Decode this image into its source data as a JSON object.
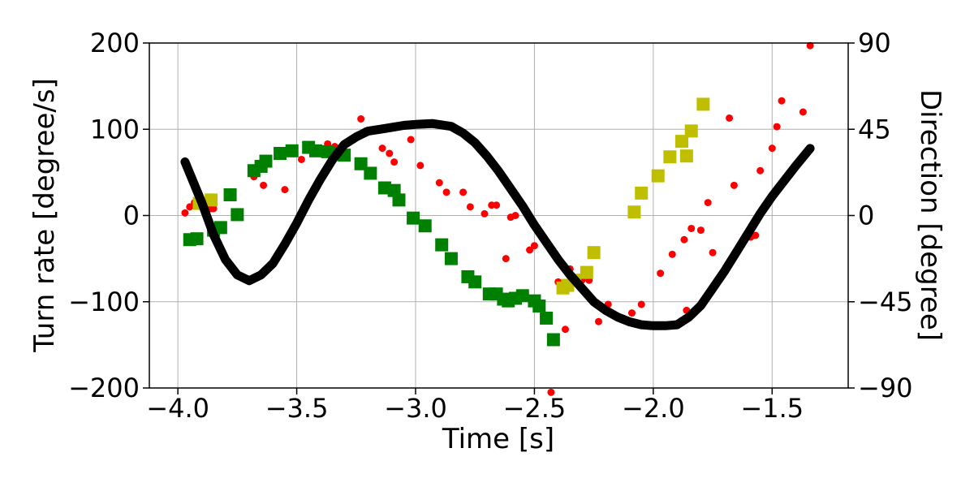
{
  "chart_data": {
    "type": "scatter",
    "title": "",
    "xlabel": "Time [s]",
    "ylabel": "Turn rate [degree/s]",
    "y2label": "Direction [degree]",
    "xlim": [
      -4.12,
      -1.18
    ],
    "ylim": [
      -200,
      200
    ],
    "y2lim": [
      -90,
      90
    ],
    "x_ticks": [
      -4.0,
      -3.5,
      -3.0,
      -2.5,
      -2.0,
      -1.5
    ],
    "x_tick_labels": [
      "−4.0",
      "−3.5",
      "−3.0",
      "−2.5",
      "−2.0",
      "−1.5"
    ],
    "y_ticks": [
      -200,
      -100,
      0,
      100,
      200
    ],
    "y_tick_labels": [
      "−200",
      "−100",
      "0",
      "100",
      "200"
    ],
    "y2_ticks": [
      -90,
      -45,
      0,
      45,
      90
    ],
    "y2_tick_labels": [
      "−90",
      "−45",
      "0",
      "45",
      "90"
    ],
    "grid": true,
    "series": [
      {
        "axis": "left",
        "marker": "circle",
        "color": "#ff0000",
        "points": [
          [
            -3.97,
            3
          ],
          [
            -3.95,
            10
          ],
          [
            -3.93,
            15
          ],
          [
            -3.9,
            12
          ],
          [
            -3.87,
            8
          ],
          [
            -3.86,
            8
          ],
          [
            -3.85,
            8
          ],
          [
            -3.68,
            45
          ],
          [
            -3.64,
            35
          ],
          [
            -3.55,
            30
          ],
          [
            -3.48,
            65
          ],
          [
            -3.42,
            75
          ],
          [
            -3.4,
            73
          ],
          [
            -3.37,
            83
          ],
          [
            -3.34,
            80
          ],
          [
            -3.32,
            78
          ],
          [
            -3.26,
            88
          ],
          [
            -3.23,
            112
          ],
          [
            -3.21,
            98
          ],
          [
            -3.14,
            78
          ],
          [
            -3.11,
            72
          ],
          [
            -3.09,
            62
          ],
          [
            -3.02,
            88
          ],
          [
            -2.98,
            58
          ],
          [
            -2.9,
            38
          ],
          [
            -2.87,
            27
          ],
          [
            -2.8,
            27
          ],
          [
            -2.77,
            10
          ],
          [
            -2.71,
            2
          ],
          [
            -2.68,
            12
          ],
          [
            -2.66,
            12
          ],
          [
            -2.62,
            -50
          ],
          [
            -2.6,
            -2
          ],
          [
            -2.58,
            0
          ],
          [
            -2.52,
            -40
          ],
          [
            -2.5,
            -35
          ],
          [
            -2.48,
            -20
          ],
          [
            -2.43,
            -205
          ],
          [
            -2.4,
            -77
          ],
          [
            -2.37,
            -132
          ],
          [
            -2.35,
            -62
          ],
          [
            -2.3,
            -75
          ],
          [
            -2.27,
            -75
          ],
          [
            -2.23,
            -123
          ],
          [
            -2.19,
            -103
          ],
          [
            -2.09,
            -113
          ],
          [
            -2.05,
            -103
          ],
          [
            -1.97,
            -67
          ],
          [
            -1.92,
            -45
          ],
          [
            -1.87,
            -28
          ],
          [
            -1.86,
            -110
          ],
          [
            -1.84,
            -15
          ],
          [
            -1.8,
            -17
          ],
          [
            -1.77,
            15
          ],
          [
            -1.75,
            -43
          ],
          [
            -1.68,
            113
          ],
          [
            -1.66,
            35
          ],
          [
            -1.59,
            -25
          ],
          [
            -1.57,
            -23
          ],
          [
            -1.55,
            52
          ],
          [
            -1.5,
            78
          ],
          [
            -1.48,
            103
          ],
          [
            -1.46,
            133
          ],
          [
            -1.37,
            120
          ],
          [
            -1.34,
            197
          ]
        ]
      },
      {
        "axis": "left",
        "marker": "square",
        "color": "#008000",
        "points": [
          [
            -3.95,
            -28
          ],
          [
            -3.92,
            -27
          ],
          [
            -3.85,
            -17
          ],
          [
            -3.82,
            -14
          ],
          [
            -3.78,
            24
          ],
          [
            -3.75,
            1
          ],
          [
            -3.68,
            52
          ],
          [
            -3.65,
            57
          ],
          [
            -3.63,
            63
          ],
          [
            -3.57,
            72
          ],
          [
            -3.52,
            75
          ],
          [
            -3.45,
            79
          ],
          [
            -3.42,
            75
          ],
          [
            -3.37,
            74
          ],
          [
            -3.33,
            72
          ],
          [
            -3.3,
            70
          ],
          [
            -3.23,
            60
          ],
          [
            -3.19,
            49
          ],
          [
            -3.13,
            32
          ],
          [
            -3.09,
            29
          ],
          [
            -3.07,
            18
          ],
          [
            -3.01,
            -3
          ],
          [
            -2.96,
            -12
          ],
          [
            -2.89,
            -34
          ],
          [
            -2.85,
            -50
          ],
          [
            -2.78,
            -71
          ],
          [
            -2.75,
            -77
          ],
          [
            -2.69,
            -91
          ],
          [
            -2.66,
            -91
          ],
          [
            -2.63,
            -97
          ],
          [
            -2.61,
            -99
          ],
          [
            -2.58,
            -96
          ],
          [
            -2.55,
            -93
          ],
          [
            -2.5,
            -99
          ],
          [
            -2.48,
            -105
          ],
          [
            -2.45,
            -119
          ],
          [
            -2.42,
            -144
          ]
        ]
      },
      {
        "axis": "left",
        "marker": "square",
        "color": "#bfbf00",
        "points": [
          [
            -3.91,
            14
          ],
          [
            -3.86,
            18
          ],
          [
            -2.38,
            -84
          ],
          [
            -2.36,
            -81
          ],
          [
            -2.33,
            -75
          ],
          [
            -2.28,
            -66
          ],
          [
            -2.25,
            -43
          ],
          [
            -2.08,
            4
          ],
          [
            -2.05,
            26
          ],
          [
            -1.98,
            46
          ],
          [
            -1.93,
            68
          ],
          [
            -1.88,
            86
          ],
          [
            -1.86,
            69
          ],
          [
            -1.84,
            98
          ],
          [
            -1.79,
            129
          ]
        ]
      },
      {
        "axis": "right",
        "marker": "line",
        "color": "#000000",
        "points": [
          [
            -3.97,
            28
          ],
          [
            -3.9,
            7
          ],
          [
            -3.85,
            -10
          ],
          [
            -3.8,
            -23
          ],
          [
            -3.75,
            -31
          ],
          [
            -3.7,
            -34
          ],
          [
            -3.65,
            -31
          ],
          [
            -3.6,
            -25
          ],
          [
            -3.55,
            -15
          ],
          [
            -3.5,
            -4
          ],
          [
            -3.45,
            8
          ],
          [
            -3.4,
            19
          ],
          [
            -3.35,
            29
          ],
          [
            -3.3,
            37
          ],
          [
            -3.25,
            41
          ],
          [
            -3.2,
            44
          ],
          [
            -3.15,
            45
          ],
          [
            -3.1,
            46
          ],
          [
            -3.05,
            47
          ],
          [
            -3.0,
            47.5
          ],
          [
            -2.93,
            48
          ],
          [
            -2.85,
            46.5
          ],
          [
            -2.8,
            43
          ],
          [
            -2.75,
            38
          ],
          [
            -2.7,
            31
          ],
          [
            -2.65,
            23
          ],
          [
            -2.6,
            14
          ],
          [
            -2.55,
            5
          ],
          [
            -2.5,
            -5
          ],
          [
            -2.45,
            -14
          ],
          [
            -2.4,
            -23
          ],
          [
            -2.35,
            -31
          ],
          [
            -2.3,
            -38
          ],
          [
            -2.25,
            -45
          ],
          [
            -2.2,
            -49.5
          ],
          [
            -2.15,
            -53
          ],
          [
            -2.1,
            -55.5
          ],
          [
            -2.05,
            -57
          ],
          [
            -2.0,
            -57.5
          ],
          [
            -1.95,
            -57.5
          ],
          [
            -1.9,
            -57
          ],
          [
            -1.85,
            -53
          ],
          [
            -1.8,
            -47
          ],
          [
            -1.75,
            -38
          ],
          [
            -1.7,
            -29
          ],
          [
            -1.65,
            -19
          ],
          [
            -1.6,
            -9
          ],
          [
            -1.55,
            1
          ],
          [
            -1.5,
            10
          ],
          [
            -1.45,
            18
          ],
          [
            -1.4,
            26
          ],
          [
            -1.34,
            35
          ]
        ]
      }
    ]
  }
}
